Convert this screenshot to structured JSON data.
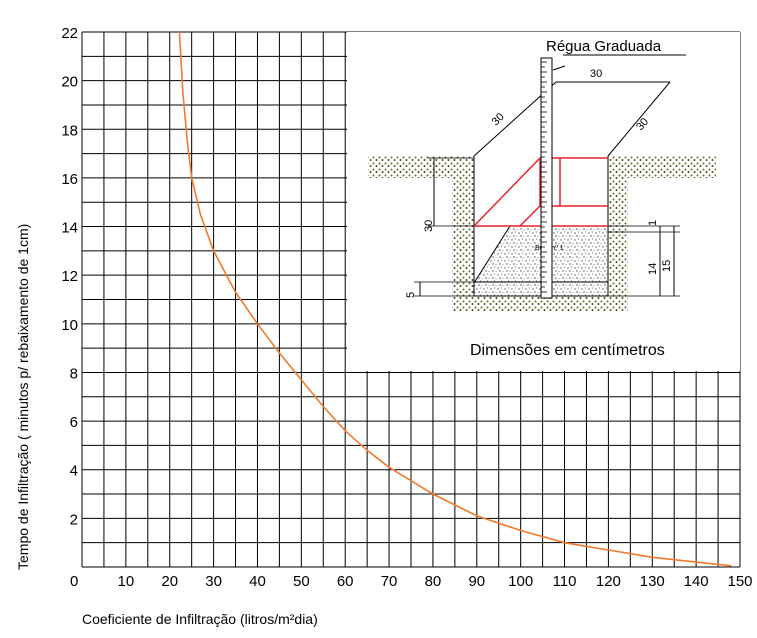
{
  "chart_data": {
    "type": "line",
    "xlabel": "Coeficiente de Infiltração (litros/m²dia)",
    "ylabel": "Tempo de Infiltração ( minutos p/ rebaixamento de 1cm)",
    "xlim": [
      0,
      150
    ],
    "ylim": [
      0,
      22
    ],
    "x_ticks": [
      "0",
      "10",
      "20",
      "30",
      "40",
      "50",
      "60",
      "70",
      "80",
      "90",
      "100",
      "110",
      "120",
      "130",
      "140",
      "150"
    ],
    "y_ticks": [
      "2",
      "4",
      "6",
      "8",
      "10",
      "12",
      "14",
      "16",
      "18",
      "20",
      "22"
    ],
    "grid": true,
    "series": [
      {
        "color": "#f07a2a",
        "x": [
          22.2,
          23,
          24,
          25,
          27,
          30,
          35,
          40,
          45,
          50,
          55,
          60,
          65,
          70,
          80,
          90,
          100,
          110,
          120,
          130,
          140,
          148
        ],
        "y": [
          22,
          19.5,
          17.5,
          16,
          14.5,
          13,
          11.3,
          10,
          8.8,
          7.7,
          6.6,
          5.6,
          4.8,
          4.1,
          3.0,
          2.1,
          1.5,
          1.0,
          0.7,
          0.4,
          0.2,
          0.05
        ]
      }
    ]
  },
  "inset": {
    "title": "Régua Graduada",
    "caption": "Dimensões em centímetros",
    "dim_top": "30",
    "dim_left_slope": "30",
    "dim_right_slope": "30",
    "dim_depth": "30",
    "dim_gap": "1",
    "dim_gravel": "14",
    "dim_total": "15",
    "dim_sand": "5",
    "fill_label": "Brita nº 1"
  },
  "colors": {
    "grid": "#000000",
    "curve": "#f07a2a",
    "pit_red": "#e8202a",
    "soil": "#6b6b2a"
  }
}
